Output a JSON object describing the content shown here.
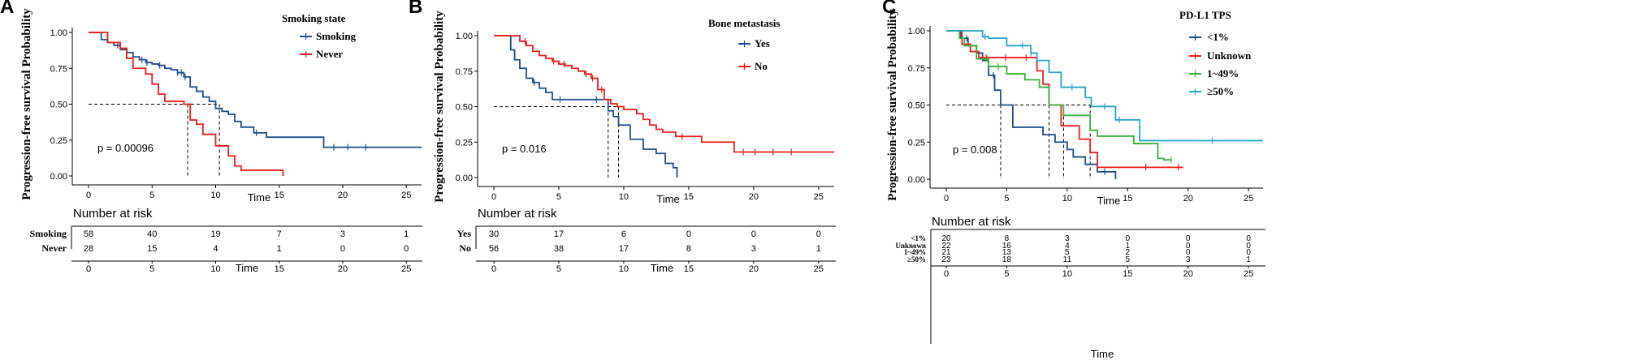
{
  "chart_data": [
    {
      "type": "line",
      "panel": "A",
      "title": "",
      "xlabel": "Time",
      "ylabel": "Progression-free survival Probability",
      "xlim": [
        -1,
        26.2
      ],
      "ylim": [
        0,
        1.0
      ],
      "xticks": [
        "0",
        "5",
        "10",
        "15",
        "20",
        "25"
      ],
      "yticks": [
        "0.00",
        "0.25",
        "0.50",
        "0.75",
        "1.00"
      ],
      "legend_title": "Smoking state",
      "pvalue": "p = 0.00096",
      "median_x": [
        7.8,
        10.3
      ],
      "series": [
        {
          "name": "Smoking",
          "color": "#1f4e8c",
          "x": [
            0,
            1.0,
            1.5,
            2.0,
            2.5,
            3.0,
            3.5,
            4.0,
            4.5,
            5.0,
            5.5,
            6.0,
            6.5,
            7.0,
            7.5,
            8.0,
            8.5,
            9.0,
            9.5,
            10.0,
            10.5,
            11.0,
            11.5,
            12.0,
            13.0,
            14.0,
            15.0,
            18.5,
            26.2
          ],
          "y": [
            1.0,
            0.95,
            0.93,
            0.91,
            0.88,
            0.86,
            0.83,
            0.81,
            0.79,
            0.78,
            0.77,
            0.75,
            0.74,
            0.72,
            0.69,
            0.62,
            0.59,
            0.55,
            0.52,
            0.47,
            0.45,
            0.43,
            0.38,
            0.34,
            0.3,
            0.27,
            0.27,
            0.2,
            0.2
          ],
          "censor_x": [
            2.3,
            4.2,
            4.6,
            5.6,
            7.0,
            7.3,
            7.6,
            13.2,
            19.3,
            20.4,
            21.8
          ]
        },
        {
          "name": "Never",
          "color": "#ee1c1c",
          "x": [
            0,
            1.5,
            2.5,
            3.0,
            3.5,
            4.5,
            5.0,
            5.5,
            6.0,
            7.5,
            8.0,
            8.5,
            9.0,
            10.0,
            11.0,
            11.5,
            12.0,
            15.3
          ],
          "y": [
            1.0,
            0.93,
            0.89,
            0.82,
            0.75,
            0.71,
            0.64,
            0.57,
            0.52,
            0.5,
            0.39,
            0.36,
            0.29,
            0.21,
            0.14,
            0.07,
            0.04,
            0.0
          ],
          "censor_x": []
        }
      ],
      "risk_table": {
        "title": "Number at risk",
        "xlabel": "Time",
        "rows": [
          {
            "label": "Smoking",
            "values": [
              "58",
              "40",
              "19",
              "7",
              "3",
              "1"
            ]
          },
          {
            "label": "Never",
            "values": [
              "28",
              "15",
              "4",
              "1",
              "0",
              "0"
            ]
          }
        ]
      }
    },
    {
      "type": "line",
      "panel": "B",
      "title": "",
      "xlabel": "Time",
      "ylabel": "Progression-free survival Probability",
      "xlim": [
        -1,
        26.2
      ],
      "ylim": [
        0,
        1.0
      ],
      "xticks": [
        "0",
        "5",
        "10",
        "15",
        "20",
        "25"
      ],
      "yticks": [
        "0.00",
        "0.25",
        "0.50",
        "0.75",
        "1.00"
      ],
      "legend_title": "Bone metastasis",
      "pvalue": "p = 0.016",
      "median_x": [
        8.8,
        9.6
      ],
      "series": [
        {
          "name": "Yes",
          "color": "#1f4e8c",
          "x": [
            0,
            1.3,
            1.6,
            2.0,
            2.5,
            3.0,
            3.5,
            4.0,
            4.5,
            8.8,
            9.2,
            9.6,
            10.5,
            11.5,
            12.5,
            13.2,
            13.8,
            14.1
          ],
          "y": [
            1.0,
            0.9,
            0.83,
            0.77,
            0.7,
            0.67,
            0.63,
            0.6,
            0.55,
            0.47,
            0.43,
            0.37,
            0.27,
            0.2,
            0.17,
            0.1,
            0.07,
            0.0
          ],
          "censor_x": [
            3.1,
            5.1,
            7.9
          ]
        },
        {
          "name": "No",
          "color": "#ee1c1c",
          "x": [
            0,
            2.0,
            2.5,
            3.0,
            3.5,
            4.0,
            4.5,
            5.0,
            5.5,
            6.0,
            6.5,
            7.0,
            7.5,
            8.0,
            8.5,
            9.0,
            9.5,
            10.0,
            11.0,
            11.5,
            12.0,
            12.5,
            13.0,
            14.0,
            16.0,
            18.5,
            26.2
          ],
          "y": [
            1.0,
            0.96,
            0.93,
            0.89,
            0.86,
            0.84,
            0.82,
            0.8,
            0.79,
            0.77,
            0.75,
            0.73,
            0.7,
            0.62,
            0.55,
            0.52,
            0.5,
            0.48,
            0.45,
            0.41,
            0.37,
            0.34,
            0.32,
            0.29,
            0.25,
            0.18,
            0.18
          ],
          "censor_x": [
            2.4,
            4.6,
            5.4,
            7.1,
            7.6,
            8.3,
            14.5,
            19.2,
            20.1,
            21.5,
            22.9
          ]
        }
      ],
      "risk_table": {
        "title": "Number at risk",
        "xlabel": "Time",
        "rows": [
          {
            "label": "Yes",
            "values": [
              "30",
              "17",
              "6",
              "0",
              "0",
              "0"
            ]
          },
          {
            "label": "No",
            "values": [
              "56",
              "38",
              "17",
              "8",
              "3",
              "1"
            ]
          }
        ]
      }
    },
    {
      "type": "line",
      "panel": "C",
      "title": "",
      "xlabel": "Time",
      "ylabel": "Progression-free survival Probability",
      "xlim": [
        -1,
        26.2
      ],
      "ylim": [
        0,
        1.0
      ],
      "xticks": [
        "0",
        "5",
        "10",
        "15",
        "20",
        "25"
      ],
      "yticks": [
        "0.00",
        "0.25",
        "0.50",
        "0.75",
        "1.00"
      ],
      "legend_title": "PD-L1 TPS",
      "pvalue": "p = 0.008",
      "median_x": [
        4.5,
        8.5,
        9.7,
        11.9
      ],
      "series": [
        {
          "name": "<1%",
          "color": "#1f4e8c",
          "x": [
            0,
            1.2,
            1.8,
            2.5,
            3.0,
            3.5,
            4.0,
            4.5,
            5.5,
            8.0,
            9.0,
            10.0,
            10.5,
            11.5,
            12.5,
            14.0
          ],
          "y": [
            1.0,
            0.95,
            0.9,
            0.85,
            0.8,
            0.7,
            0.6,
            0.5,
            0.35,
            0.3,
            0.25,
            0.2,
            0.15,
            0.1,
            0.05,
            0.0
          ],
          "censor_x": [
            1.7,
            3.9,
            13.1
          ]
        },
        {
          "name": "Unknown",
          "color": "#ee1c1c",
          "x": [
            0,
            1.3,
            2.0,
            2.7,
            3.5,
            4.5,
            7.5,
            8.0,
            8.5,
            9.5,
            11.0,
            11.9,
            12.5,
            19.6
          ],
          "y": [
            1.0,
            0.91,
            0.86,
            0.82,
            0.82,
            0.82,
            0.73,
            0.64,
            0.5,
            0.36,
            0.27,
            0.18,
            0.08,
            0.08
          ],
          "censor_x": [
            3.3,
            4.9,
            6.6,
            16.5,
            19.2
          ]
        },
        {
          "name": "1~49%",
          "color": "#39b23c",
          "x": [
            0,
            1.1,
            1.5,
            2.5,
            3.5,
            5.0,
            6.5,
            7.7,
            8.5,
            9.7,
            11.9,
            12.5,
            14.0,
            15.5,
            17.5,
            18.0,
            18.6
          ],
          "y": [
            1.0,
            0.95,
            0.9,
            0.81,
            0.76,
            0.71,
            0.67,
            0.62,
            0.5,
            0.43,
            0.33,
            0.29,
            0.29,
            0.24,
            0.14,
            0.13,
            0.13
          ],
          "censor_x": [
            3.4,
            4.3,
            18.6
          ]
        },
        {
          "name": "≥50%",
          "color": "#27a4c8",
          "x": [
            0,
            3.0,
            3.5,
            5.0,
            7.0,
            7.5,
            8.5,
            9.5,
            11.5,
            12.0,
            14.0,
            16.0,
            26.2
          ],
          "y": [
            1.0,
            0.96,
            0.95,
            0.9,
            0.85,
            0.8,
            0.72,
            0.62,
            0.55,
            0.49,
            0.4,
            0.26,
            0.26
          ],
          "censor_x": [
            3.2,
            6.3,
            7.0,
            10.4,
            13.1,
            14.3,
            22.0
          ]
        }
      ],
      "risk_table": {
        "title": "Number at risk",
        "xlabel": "Time",
        "rows": [
          {
            "label": "<1%",
            "values": [
              "20",
              "8",
              "3",
              "0",
              "0",
              "0"
            ]
          },
          {
            "label": "Unknown",
            "values": [
              "22",
              "16",
              "4",
              "1",
              "0",
              "0"
            ]
          },
          {
            "label": "1~49%",
            "values": [
              "21",
              "13",
              "5",
              "2",
              "0",
              "0"
            ]
          },
          {
            "label": "≥50%",
            "values": [
              "23",
              "18",
              "11",
              "5",
              "3",
              "1"
            ]
          }
        ]
      }
    }
  ]
}
